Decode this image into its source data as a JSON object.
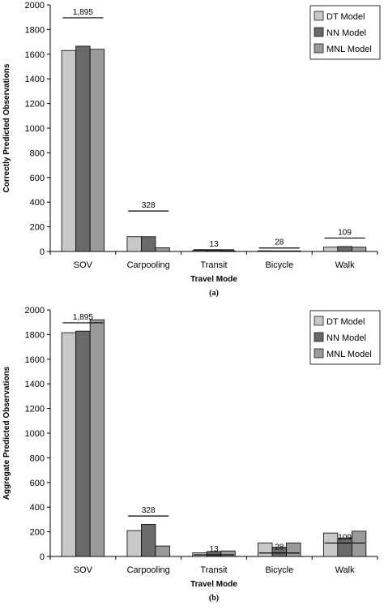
{
  "colors": {
    "dt": "#c8c8c8",
    "nn": "#6a6a6a",
    "mnl": "#9a9a9a",
    "axis": "#000000"
  },
  "chart_data": [
    {
      "type": "bar",
      "panel_label": "(a)",
      "xlabel": "Travel Mode",
      "ylabel": "Correctly Predicted Observations",
      "categories": [
        "SOV",
        "Carpooling",
        "Transit",
        "Bicycle",
        "Walk"
      ],
      "ylim": [
        0,
        2000
      ],
      "yticks": [
        0,
        200,
        400,
        600,
        800,
        1000,
        1200,
        1400,
        1600,
        1800,
        2000
      ],
      "legend_position": "top-right",
      "series": [
        {
          "name": "DT Model",
          "color": "#c8c8c8",
          "values": [
            1630,
            120,
            8,
            6,
            35
          ]
        },
        {
          "name": "NN Model",
          "color": "#6a6a6a",
          "values": [
            1665,
            120,
            10,
            5,
            40
          ]
        },
        {
          "name": "MNL Model",
          "color": "#9a9a9a",
          "values": [
            1640,
            30,
            5,
            5,
            35
          ]
        }
      ],
      "observed": {
        "values": [
          1895,
          328,
          13,
          28,
          109
        ],
        "labels": [
          "1,895",
          "328",
          "13",
          "28",
          "109"
        ]
      }
    },
    {
      "type": "bar",
      "panel_label": "(b)",
      "xlabel": "Travel Mode",
      "ylabel": "Aggregate Predicted Observations",
      "categories": [
        "SOV",
        "Carpooling",
        "Transit",
        "Bicycle",
        "Walk"
      ],
      "ylim": [
        0,
        2000
      ],
      "yticks": [
        0,
        200,
        400,
        600,
        800,
        1000,
        1200,
        1400,
        1600,
        1800,
        2000
      ],
      "legend_position": "top-right",
      "series": [
        {
          "name": "DT Model",
          "color": "#c8c8c8",
          "values": [
            1815,
            210,
            30,
            110,
            190
          ]
        },
        {
          "name": "NN Model",
          "color": "#6a6a6a",
          "values": [
            1828,
            260,
            40,
            75,
            150
          ]
        },
        {
          "name": "MNL Model",
          "color": "#9a9a9a",
          "values": [
            1920,
            85,
            45,
            110,
            205
          ]
        }
      ],
      "observed": {
        "values": [
          1895,
          328,
          13,
          28,
          109
        ],
        "labels": [
          "1,895",
          "328",
          "13",
          "28",
          "109"
        ]
      }
    }
  ]
}
